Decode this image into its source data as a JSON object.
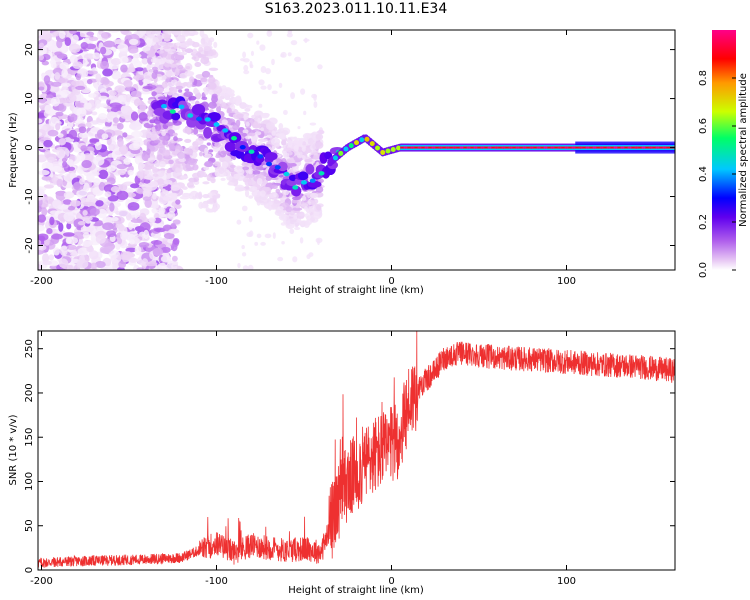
{
  "title": "S163.2023.011.10.11.E34",
  "chart_data": [
    {
      "type": "heatmap",
      "xlabel": "Height of straight line (km)",
      "ylabel": "Frequency (Hz)",
      "xlim": [
        -202,
        162
      ],
      "ylim": [
        -25,
        24
      ],
      "xticks": [
        -200,
        -100,
        0,
        100
      ],
      "yticks": [
        -20,
        -10,
        0,
        10,
        20
      ],
      "colorbar": {
        "label": "Normalized spectral amplitude",
        "range": [
          0.0,
          1.0
        ],
        "ticks": [
          0.0,
          0.2,
          0.4,
          0.6,
          0.8
        ],
        "colors": [
          "#ffffff",
          "#e8c8f4",
          "#b060ec",
          "#6000ee",
          "#0000ff",
          "#00c8ff",
          "#00ff66",
          "#ccff00",
          "#ff9900",
          "#ff0000",
          "#ff0088"
        ]
      },
      "ridge": [
        {
          "x": -130,
          "f": 8
        },
        {
          "x": -115,
          "f": 7
        },
        {
          "x": -100,
          "f": 4
        },
        {
          "x": -85,
          "f": 0
        },
        {
          "x": -75,
          "f": -2
        },
        {
          "x": -65,
          "f": -4
        },
        {
          "x": -55,
          "f": -8
        },
        {
          "x": -45,
          "f": -6
        },
        {
          "x": -35,
          "f": -3
        },
        {
          "x": -25,
          "f": 0
        },
        {
          "x": -15,
          "f": 2
        },
        {
          "x": -5,
          "f": -1
        },
        {
          "x": 5,
          "f": 0
        },
        {
          "x": 160,
          "f": 0
        }
      ]
    },
    {
      "type": "line",
      "xlabel": "Height of straight line (km)",
      "ylabel": "SNR (10 * v/v)",
      "xlim": [
        -202,
        162
      ],
      "ylim": [
        0,
        270
      ],
      "xticks": [
        -200,
        -100,
        0,
        100
      ],
      "yticks": [
        0,
        50,
        100,
        150,
        200,
        250
      ],
      "color": "#ee3030",
      "series": [
        {
          "x": [
            -202,
            -180,
            -160,
            -140,
            -120,
            -110,
            -100,
            -90,
            -80,
            -70,
            -60,
            -50,
            -40,
            -35,
            -30,
            -25,
            -20,
            -15,
            -10,
            -5,
            0,
            5,
            10,
            15,
            20,
            25,
            30,
            40,
            50,
            60,
            80,
            100,
            120,
            140,
            162
          ],
          "values": [
            8,
            10,
            11,
            12,
            14,
            22,
            30,
            20,
            28,
            25,
            22,
            24,
            20,
            50,
            80,
            100,
            110,
            120,
            130,
            135,
            140,
            150,
            190,
            205,
            215,
            225,
            240,
            245,
            243,
            240,
            238,
            235,
            232,
            230,
            225
          ]
        }
      ]
    }
  ]
}
